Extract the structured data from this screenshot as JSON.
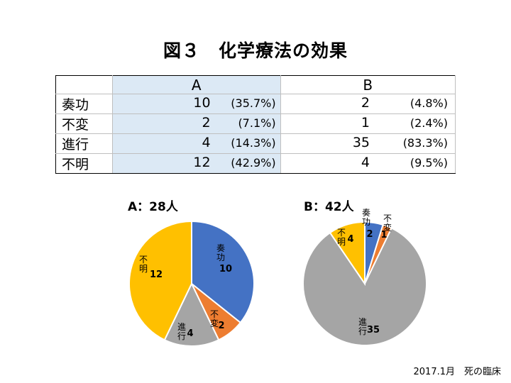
{
  "title": "図３　化学療法の効果",
  "table": {
    "headers": [
      "A",
      "B"
    ],
    "rows": [
      {
        "label": "奏功",
        "a_count": "10",
        "a_pct": "(35.7%)",
        "b_count": "2",
        "b_pct": "(4.8%)"
      },
      {
        "label": "不変",
        "a_count": "2",
        "a_pct": "(7.1%)",
        "b_count": "1",
        "b_pct": "(2.4%)"
      },
      {
        "label": "進行",
        "a_count": "4",
        "a_pct": "(14.3%)",
        "b_count": "35",
        "b_pct": "(83.3%)"
      },
      {
        "label": "不明",
        "a_count": "12",
        "a_pct": "(42.9%)",
        "b_count": "4",
        "b_pct": "(9.5%)"
      }
    ]
  },
  "chart_data": [
    {
      "type": "pie",
      "title": "A：28人",
      "labels": [
        "奏功",
        "不変",
        "進行",
        "不明"
      ],
      "values": [
        10,
        2,
        4,
        12
      ],
      "colors": [
        "#4472c4",
        "#ed7d31",
        "#a5a5a5",
        "#ffc000"
      ]
    },
    {
      "type": "pie",
      "title": "B：42人",
      "labels": [
        "奏功",
        "不変",
        "進行",
        "不明"
      ],
      "values": [
        2,
        1,
        35,
        4
      ],
      "colors": [
        "#4472c4",
        "#ed7d31",
        "#a5a5a5",
        "#ffc000"
      ]
    }
  ],
  "footer": "2017.1月　死の臨床"
}
